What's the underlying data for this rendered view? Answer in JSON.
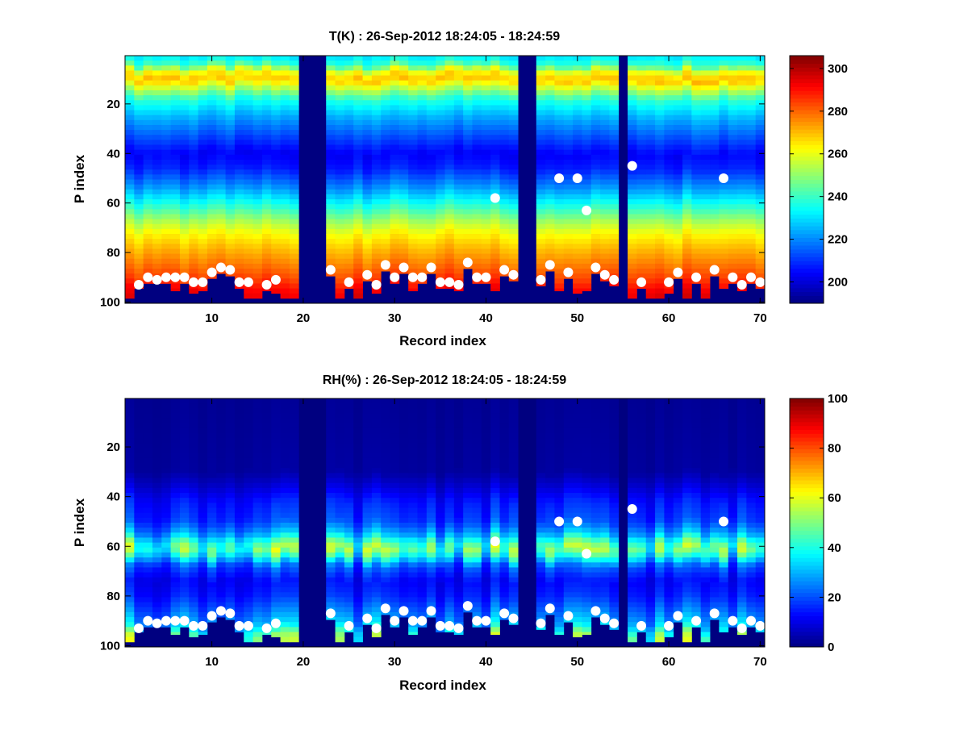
{
  "chart_data": [
    {
      "type": "heatmap",
      "title": "T(K) : 26-Sep-2012 18:24:05 - 18:24:59",
      "xlabel": "Record index",
      "ylabel": "P index",
      "xlim": [
        0.5,
        70.5
      ],
      "ylim": [
        0.5,
        100.5
      ],
      "y_reversed": true,
      "xticks": [
        10,
        20,
        30,
        40,
        50,
        60,
        70
      ],
      "yticks": [
        20,
        40,
        60,
        80,
        100
      ],
      "colorbar": {
        "colormap": "jet",
        "range": [
          190,
          306
        ],
        "ticks": [
          200,
          220,
          240,
          260,
          280,
          300
        ]
      },
      "fill_value": 190,
      "missing_records": [
        20,
        21,
        22,
        44,
        45,
        55
      ],
      "profile_model": [
        {
          "p": 1,
          "value": 232
        },
        {
          "p": 4,
          "value": 240
        },
        {
          "p": 7,
          "value": 262
        },
        {
          "p": 10,
          "value": 270
        },
        {
          "p": 13,
          "value": 258
        },
        {
          "p": 18,
          "value": 238
        },
        {
          "p": 25,
          "value": 225
        },
        {
          "p": 32,
          "value": 215
        },
        {
          "p": 40,
          "value": 204
        },
        {
          "p": 46,
          "value": 208
        },
        {
          "p": 54,
          "value": 222
        },
        {
          "p": 62,
          "value": 240
        },
        {
          "p": 67,
          "value": 252
        },
        {
          "p": 72,
          "value": 262
        },
        {
          "p": 78,
          "value": 270
        },
        {
          "p": 84,
          "value": 277
        },
        {
          "p": 90,
          "value": 284
        },
        {
          "p": 95,
          "value": 292
        },
        {
          "p": 100,
          "value": 296
        }
      ],
      "bottom_fill": [
        {
          "record": 1,
          "p_end": 98
        },
        {
          "record": 2,
          "p_end": 94
        },
        {
          "record": 3,
          "p_end": 92
        },
        {
          "record": 4,
          "p_end": 92
        },
        {
          "record": 5,
          "p_end": 92
        },
        {
          "record": 6,
          "p_end": 95
        },
        {
          "record": 7,
          "p_end": 92
        },
        {
          "record": 8,
          "p_end": 96
        },
        {
          "record": 9,
          "p_end": 95
        },
        {
          "record": 10,
          "p_end": 90
        },
        {
          "record": 11,
          "p_end": 88
        },
        {
          "record": 12,
          "p_end": 89
        },
        {
          "record": 13,
          "p_end": 94
        },
        {
          "record": 14,
          "p_end": 98
        },
        {
          "record": 15,
          "p_end": 98
        },
        {
          "record": 16,
          "p_end": 95
        },
        {
          "record": 17,
          "p_end": 96
        },
        {
          "record": 18,
          "p_end": 98
        },
        {
          "record": 19,
          "p_end": 98
        },
        {
          "record": 23,
          "p_end": 89
        },
        {
          "record": 24,
          "p_end": 98
        },
        {
          "record": 25,
          "p_end": 94
        },
        {
          "record": 26,
          "p_end": 98
        },
        {
          "record": 27,
          "p_end": 91
        },
        {
          "record": 28,
          "p_end": 96
        },
        {
          "record": 29,
          "p_end": 87
        },
        {
          "record": 30,
          "p_end": 92
        },
        {
          "record": 31,
          "p_end": 88
        },
        {
          "record": 32,
          "p_end": 95
        },
        {
          "record": 33,
          "p_end": 92
        },
        {
          "record": 34,
          "p_end": 88
        },
        {
          "record": 35,
          "p_end": 94
        },
        {
          "record": 36,
          "p_end": 94
        },
        {
          "record": 37,
          "p_end": 95
        },
        {
          "record": 38,
          "p_end": 86
        },
        {
          "record": 39,
          "p_end": 92
        },
        {
          "record": 40,
          "p_end": 92
        },
        {
          "record": 41,
          "p_end": 95
        },
        {
          "record": 42,
          "p_end": 89
        },
        {
          "record": 43,
          "p_end": 91
        },
        {
          "record": 46,
          "p_end": 93
        },
        {
          "record": 47,
          "p_end": 87
        },
        {
          "record": 48,
          "p_end": 95
        },
        {
          "record": 49,
          "p_end": 90
        },
        {
          "record": 50,
          "p_end": 96
        },
        {
          "record": 51,
          "p_end": 95
        },
        {
          "record": 52,
          "p_end": 88
        },
        {
          "record": 53,
          "p_end": 91
        },
        {
          "record": 54,
          "p_end": 93
        },
        {
          "record": 56,
          "p_end": 98
        },
        {
          "record": 57,
          "p_end": 94
        },
        {
          "record": 58,
          "p_end": 98
        },
        {
          "record": 59,
          "p_end": 98
        },
        {
          "record": 60,
          "p_end": 96
        },
        {
          "record": 61,
          "p_end": 90
        },
        {
          "record": 62,
          "p_end": 98
        },
        {
          "record": 63,
          "p_end": 92
        },
        {
          "record": 64,
          "p_end": 98
        },
        {
          "record": 65,
          "p_end": 89
        },
        {
          "record": 66,
          "p_end": 94
        },
        {
          "record": 67,
          "p_end": 92
        },
        {
          "record": 68,
          "p_end": 95
        },
        {
          "record": 69,
          "p_end": 92
        },
        {
          "record": 70,
          "p_end": 94
        }
      ],
      "markers": [
        {
          "record": 2,
          "p": 93
        },
        {
          "record": 3,
          "p": 90
        },
        {
          "record": 4,
          "p": 91
        },
        {
          "record": 5,
          "p": 90
        },
        {
          "record": 6,
          "p": 90
        },
        {
          "record": 7,
          "p": 90
        },
        {
          "record": 8,
          "p": 92
        },
        {
          "record": 9,
          "p": 92
        },
        {
          "record": 10,
          "p": 88
        },
        {
          "record": 11,
          "p": 86
        },
        {
          "record": 12,
          "p": 87
        },
        {
          "record": 13,
          "p": 92
        },
        {
          "record": 14,
          "p": 92
        },
        {
          "record": 16,
          "p": 93
        },
        {
          "record": 17,
          "p": 91
        },
        {
          "record": 23,
          "p": 87
        },
        {
          "record": 25,
          "p": 92
        },
        {
          "record": 27,
          "p": 89
        },
        {
          "record": 28,
          "p": 93
        },
        {
          "record": 29,
          "p": 85
        },
        {
          "record": 30,
          "p": 90
        },
        {
          "record": 31,
          "p": 86
        },
        {
          "record": 32,
          "p": 90
        },
        {
          "record": 33,
          "p": 90
        },
        {
          "record": 34,
          "p": 86
        },
        {
          "record": 35,
          "p": 92
        },
        {
          "record": 36,
          "p": 92
        },
        {
          "record": 37,
          "p": 93
        },
        {
          "record": 38,
          "p": 84
        },
        {
          "record": 39,
          "p": 90
        },
        {
          "record": 40,
          "p": 90
        },
        {
          "record": 41,
          "p": 58
        },
        {
          "record": 42,
          "p": 87
        },
        {
          "record": 43,
          "p": 89
        },
        {
          "record": 46,
          "p": 91
        },
        {
          "record": 47,
          "p": 85
        },
        {
          "record": 48,
          "p": 50
        },
        {
          "record": 49,
          "p": 88
        },
        {
          "record": 50,
          "p": 50
        },
        {
          "record": 51,
          "p": 63
        },
        {
          "record": 52,
          "p": 86
        },
        {
          "record": 53,
          "p": 89
        },
        {
          "record": 54,
          "p": 91
        },
        {
          "record": 56,
          "p": 45
        },
        {
          "record": 57,
          "p": 92
        },
        {
          "record": 60,
          "p": 92
        },
        {
          "record": 61,
          "p": 88
        },
        {
          "record": 63,
          "p": 90
        },
        {
          "record": 65,
          "p": 87
        },
        {
          "record": 66,
          "p": 50
        },
        {
          "record": 67,
          "p": 90
        },
        {
          "record": 68,
          "p": 93
        },
        {
          "record": 69,
          "p": 90
        },
        {
          "record": 70,
          "p": 92
        }
      ]
    },
    {
      "type": "heatmap",
      "title": "RH(%) : 26-Sep-2012 18:24:05 - 18:24:59",
      "xlabel": "Record index",
      "ylabel": "P index",
      "xlim": [
        0.5,
        70.5
      ],
      "ylim": [
        0.5,
        100.5
      ],
      "y_reversed": true,
      "xticks": [
        10,
        20,
        30,
        40,
        50,
        60,
        70
      ],
      "yticks": [
        20,
        40,
        60,
        80,
        100
      ],
      "colorbar": {
        "colormap": "jet",
        "range": [
          0,
          100
        ],
        "ticks": [
          0,
          20,
          40,
          60,
          80,
          100
        ]
      },
      "fill_value": 0,
      "missing_records": [
        20,
        21,
        22,
        44,
        45,
        55
      ],
      "profile_model": [
        {
          "p": 1,
          "value": 2
        },
        {
          "p": 30,
          "value": 3
        },
        {
          "p": 36,
          "value": 8
        },
        {
          "p": 42,
          "value": 14
        },
        {
          "p": 50,
          "value": 18
        },
        {
          "p": 55,
          "value": 28
        },
        {
          "p": 58,
          "value": 40
        },
        {
          "p": 61,
          "value": 48
        },
        {
          "p": 64,
          "value": 38
        },
        {
          "p": 68,
          "value": 20
        },
        {
          "p": 74,
          "value": 12
        },
        {
          "p": 80,
          "value": 15
        },
        {
          "p": 86,
          "value": 22
        },
        {
          "p": 92,
          "value": 30
        },
        {
          "p": 96,
          "value": 45
        },
        {
          "p": 100,
          "value": 50
        }
      ],
      "bottom_fill": [
        {
          "record": 1,
          "p_end": 98
        },
        {
          "record": 2,
          "p_end": 94
        },
        {
          "record": 3,
          "p_end": 92
        },
        {
          "record": 4,
          "p_end": 92
        },
        {
          "record": 5,
          "p_end": 92
        },
        {
          "record": 6,
          "p_end": 95
        },
        {
          "record": 7,
          "p_end": 92
        },
        {
          "record": 8,
          "p_end": 96
        },
        {
          "record": 9,
          "p_end": 95
        },
        {
          "record": 10,
          "p_end": 90
        },
        {
          "record": 11,
          "p_end": 88
        },
        {
          "record": 12,
          "p_end": 89
        },
        {
          "record": 13,
          "p_end": 94
        },
        {
          "record": 14,
          "p_end": 98
        },
        {
          "record": 15,
          "p_end": 98
        },
        {
          "record": 16,
          "p_end": 95
        },
        {
          "record": 17,
          "p_end": 96
        },
        {
          "record": 18,
          "p_end": 98
        },
        {
          "record": 19,
          "p_end": 98
        },
        {
          "record": 23,
          "p_end": 89
        },
        {
          "record": 24,
          "p_end": 98
        },
        {
          "record": 25,
          "p_end": 94
        },
        {
          "record": 26,
          "p_end": 98
        },
        {
          "record": 27,
          "p_end": 91
        },
        {
          "record": 28,
          "p_end": 96
        },
        {
          "record": 29,
          "p_end": 87
        },
        {
          "record": 30,
          "p_end": 92
        },
        {
          "record": 31,
          "p_end": 88
        },
        {
          "record": 32,
          "p_end": 95
        },
        {
          "record": 33,
          "p_end": 92
        },
        {
          "record": 34,
          "p_end": 88
        },
        {
          "record": 35,
          "p_end": 94
        },
        {
          "record": 36,
          "p_end": 94
        },
        {
          "record": 37,
          "p_end": 95
        },
        {
          "record": 38,
          "p_end": 86
        },
        {
          "record": 39,
          "p_end": 92
        },
        {
          "record": 40,
          "p_end": 92
        },
        {
          "record": 41,
          "p_end": 95
        },
        {
          "record": 42,
          "p_end": 89
        },
        {
          "record": 43,
          "p_end": 91
        },
        {
          "record": 46,
          "p_end": 93
        },
        {
          "record": 47,
          "p_end": 87
        },
        {
          "record": 48,
          "p_end": 95
        },
        {
          "record": 49,
          "p_end": 90
        },
        {
          "record": 50,
          "p_end": 96
        },
        {
          "record": 51,
          "p_end": 95
        },
        {
          "record": 52,
          "p_end": 88
        },
        {
          "record": 53,
          "p_end": 91
        },
        {
          "record": 54,
          "p_end": 93
        },
        {
          "record": 56,
          "p_end": 98
        },
        {
          "record": 57,
          "p_end": 94
        },
        {
          "record": 58,
          "p_end": 98
        },
        {
          "record": 59,
          "p_end": 98
        },
        {
          "record": 60,
          "p_end": 96
        },
        {
          "record": 61,
          "p_end": 90
        },
        {
          "record": 62,
          "p_end": 98
        },
        {
          "record": 63,
          "p_end": 92
        },
        {
          "record": 64,
          "p_end": 98
        },
        {
          "record": 65,
          "p_end": 89
        },
        {
          "record": 66,
          "p_end": 94
        },
        {
          "record": 67,
          "p_end": 92
        },
        {
          "record": 68,
          "p_end": 95
        },
        {
          "record": 69,
          "p_end": 92
        },
        {
          "record": 70,
          "p_end": 94
        }
      ],
      "markers": [
        {
          "record": 2,
          "p": 93
        },
        {
          "record": 3,
          "p": 90
        },
        {
          "record": 4,
          "p": 91
        },
        {
          "record": 5,
          "p": 90
        },
        {
          "record": 6,
          "p": 90
        },
        {
          "record": 7,
          "p": 90
        },
        {
          "record": 8,
          "p": 92
        },
        {
          "record": 9,
          "p": 92
        },
        {
          "record": 10,
          "p": 88
        },
        {
          "record": 11,
          "p": 86
        },
        {
          "record": 12,
          "p": 87
        },
        {
          "record": 13,
          "p": 92
        },
        {
          "record": 14,
          "p": 92
        },
        {
          "record": 16,
          "p": 93
        },
        {
          "record": 17,
          "p": 91
        },
        {
          "record": 23,
          "p": 87
        },
        {
          "record": 25,
          "p": 92
        },
        {
          "record": 27,
          "p": 89
        },
        {
          "record": 28,
          "p": 93
        },
        {
          "record": 29,
          "p": 85
        },
        {
          "record": 30,
          "p": 90
        },
        {
          "record": 31,
          "p": 86
        },
        {
          "record": 32,
          "p": 90
        },
        {
          "record": 33,
          "p": 90
        },
        {
          "record": 34,
          "p": 86
        },
        {
          "record": 35,
          "p": 92
        },
        {
          "record": 36,
          "p": 92
        },
        {
          "record": 37,
          "p": 93
        },
        {
          "record": 38,
          "p": 84
        },
        {
          "record": 39,
          "p": 90
        },
        {
          "record": 40,
          "p": 90
        },
        {
          "record": 41,
          "p": 58
        },
        {
          "record": 42,
          "p": 87
        },
        {
          "record": 43,
          "p": 89
        },
        {
          "record": 46,
          "p": 91
        },
        {
          "record": 47,
          "p": 85
        },
        {
          "record": 48,
          "p": 50
        },
        {
          "record": 49,
          "p": 88
        },
        {
          "record": 50,
          "p": 50
        },
        {
          "record": 51,
          "p": 63
        },
        {
          "record": 52,
          "p": 86
        },
        {
          "record": 53,
          "p": 89
        },
        {
          "record": 54,
          "p": 91
        },
        {
          "record": 56,
          "p": 45
        },
        {
          "record": 57,
          "p": 92
        },
        {
          "record": 60,
          "p": 92
        },
        {
          "record": 61,
          "p": 88
        },
        {
          "record": 63,
          "p": 90
        },
        {
          "record": 65,
          "p": 87
        },
        {
          "record": 66,
          "p": 50
        },
        {
          "record": 67,
          "p": 90
        },
        {
          "record": 68,
          "p": 93
        },
        {
          "record": 69,
          "p": 90
        },
        {
          "record": 70,
          "p": 92
        }
      ]
    }
  ]
}
